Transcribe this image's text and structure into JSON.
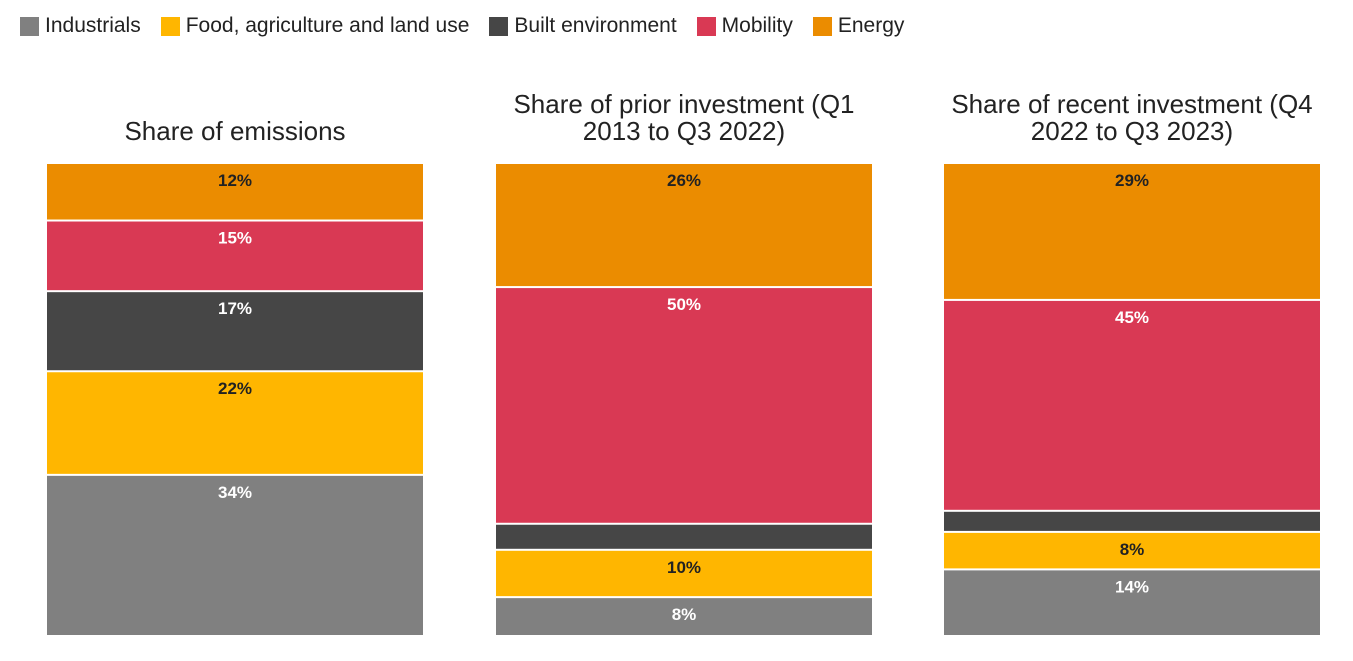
{
  "legend": [
    {
      "label": "Industrials",
      "color": "#808080"
    },
    {
      "label": "Food, agriculture and land use",
      "color": "#FFB600"
    },
    {
      "label": "Built environment",
      "color": "#464646"
    },
    {
      "label": "Mobility",
      "color": "#D93954"
    },
    {
      "label": "Energy",
      "color": "#EB8C00"
    }
  ],
  "chart_data": {
    "type": "bar",
    "stacked": true,
    "normalized": true,
    "ylim": [
      0,
      100
    ],
    "categories": [
      "Industrials",
      "Food, agriculture and land use",
      "Built environment",
      "Mobility",
      "Energy"
    ],
    "colors": [
      "#808080",
      "#FFB600",
      "#464646",
      "#D93954",
      "#EB8C00"
    ],
    "label_colors": [
      "#ffffff",
      "#222222",
      "#ffffff",
      "#ffffff",
      "#222222"
    ],
    "charts": [
      {
        "title": [
          "Share of emissions"
        ],
        "values": [
          34,
          22,
          17,
          15,
          12
        ],
        "labels": [
          "34%",
          "22%",
          "17%",
          "15%",
          "12%"
        ]
      },
      {
        "title": [
          "Share of prior investment (Q1",
          "2013 to Q3 2022)"
        ],
        "values": [
          8,
          10,
          5.5,
          50,
          26
        ],
        "labels": [
          "8%",
          "10%",
          "",
          "50%",
          "26%"
        ]
      },
      {
        "title": [
          "Share of recent investment (Q4",
          "2022 to Q3 2023)"
        ],
        "values": [
          14,
          8,
          4.5,
          45,
          29
        ],
        "labels": [
          "14%",
          "8%",
          "",
          "45%",
          "29%"
        ]
      }
    ]
  }
}
